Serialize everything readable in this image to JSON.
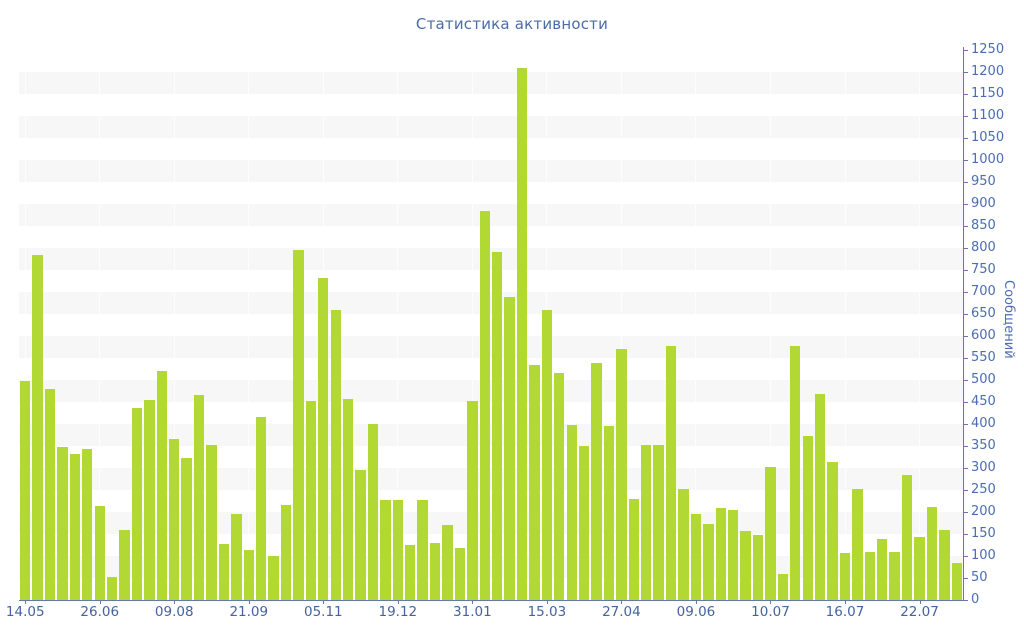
{
  "title": "Статистика активности",
  "colors": {
    "background": "#ffffff",
    "bar": "#b2d834",
    "stripe": "#f7f7f7",
    "vertical_grid": "rgba(255,255,255,0.85)",
    "axis_line": "#6079b2",
    "y_tick_label": "#4a6db4",
    "x_tick_label": "#44639f",
    "title": "#4a6da7"
  },
  "chart_data": {
    "type": "bar",
    "title": "Статистика активности",
    "xlabel": "",
    "ylabel": "Сообщений",
    "ylim": [
      0,
      1250
    ],
    "y_tick_step": 50,
    "y_ticks": [
      0,
      50,
      100,
      150,
      200,
      250,
      300,
      350,
      400,
      450,
      500,
      550,
      600,
      650,
      700,
      750,
      800,
      850,
      900,
      950,
      1000,
      1050,
      1100,
      1150,
      1200,
      1250
    ],
    "legend": "none",
    "grid": "horizontal gray stripes every 50 units, faint vertical lines at x ticks",
    "x_tick_labels": [
      "14.05",
      "26.06",
      "09.08",
      "21.09",
      "05.11",
      "19.12",
      "31.01",
      "15.03",
      "27.04",
      "09.06",
      "10.07",
      "16.07",
      "22.07"
    ],
    "x_tick_bar_indices": [
      0,
      6,
      12,
      18,
      24,
      30,
      36,
      42,
      48,
      54,
      60,
      66,
      72
    ],
    "values": [
      498,
      785,
      479,
      348,
      331,
      344,
      213,
      52,
      159,
      437,
      455,
      520,
      367,
      323,
      467,
      352,
      127,
      196,
      113,
      416,
      100,
      215,
      795,
      452,
      731,
      658,
      456,
      296,
      400,
      228,
      228,
      125,
      228,
      130,
      170,
      119,
      452,
      884,
      792,
      689,
      1210,
      534,
      658,
      515,
      397,
      350,
      538,
      395,
      571,
      230,
      352,
      352,
      578,
      252,
      196,
      172,
      209,
      204,
      157,
      148,
      302,
      59,
      577,
      373,
      468,
      314,
      106,
      252,
      108,
      138,
      108,
      285,
      144,
      211,
      159,
      85
    ]
  }
}
